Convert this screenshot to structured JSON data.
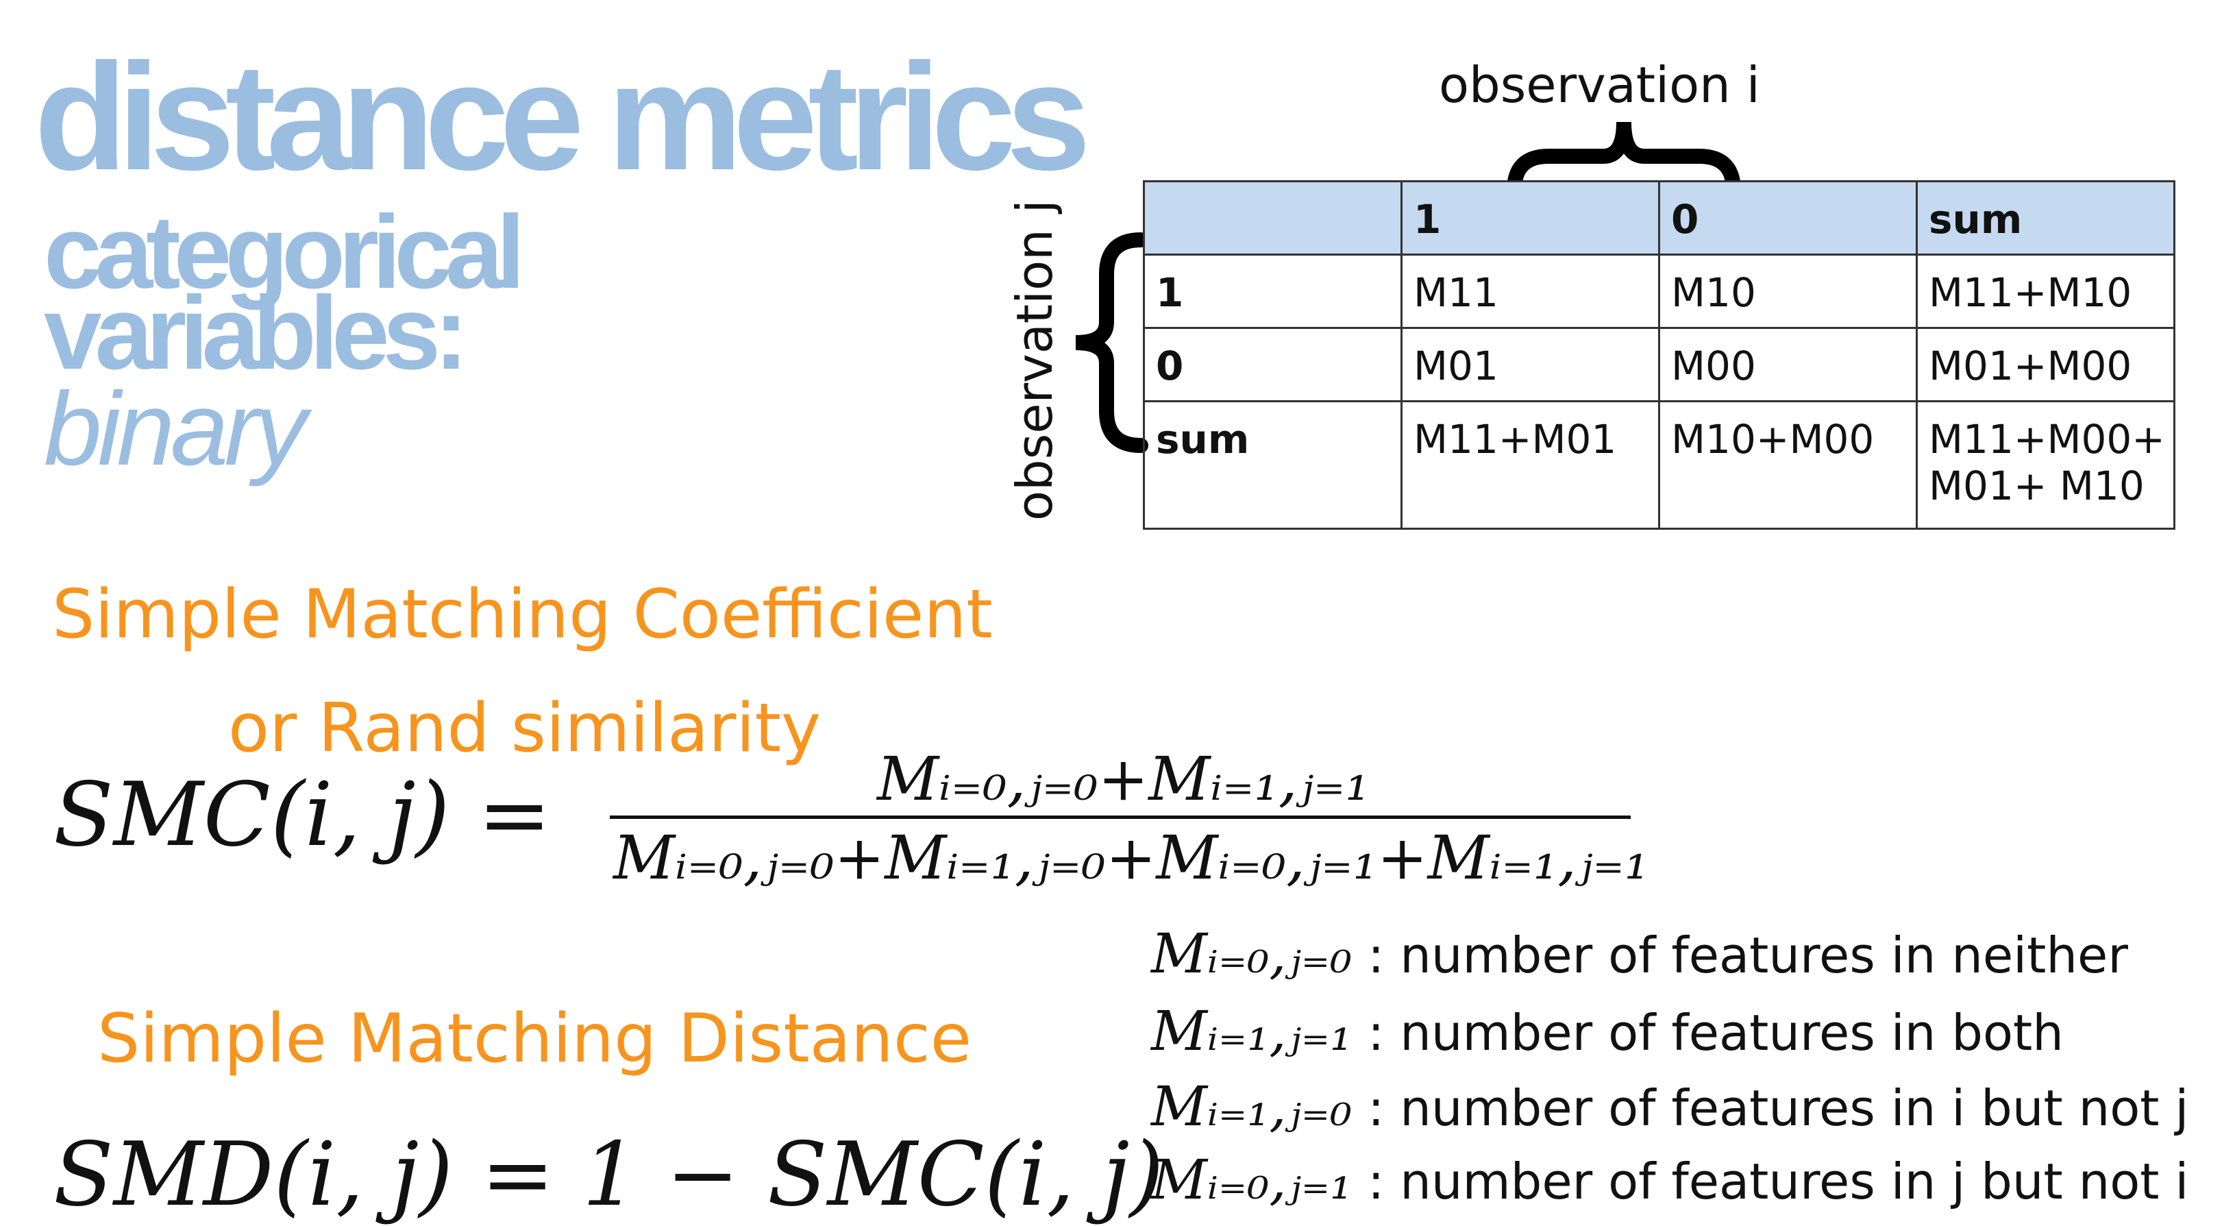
{
  "title": {
    "main": "distance metrics",
    "sub_line1": "categorical",
    "sub_line2": "variables:",
    "sub_line3": "binary"
  },
  "table": {
    "label_columns": "observation i",
    "label_rows": "observation j",
    "header": [
      "",
      "1",
      "0",
      "sum"
    ],
    "rows": [
      [
        "1",
        "M11",
        "M10",
        "M11+M10"
      ],
      [
        "0",
        "M01",
        "M00",
        "M01+M00"
      ],
      [
        "sum",
        "M11+M01",
        "M10+M00",
        "M11+M00+",
        "M01+ M10"
      ]
    ]
  },
  "headings": {
    "smc_line1": "Simple Matching Coefficient",
    "smc_line2": "or Rand similarity",
    "smd": "Simple Matching Distance"
  },
  "formulas": {
    "smc_lhs": "SMC(i, j)  =",
    "smc_num": "Mᵢ₌₀,ⱼ₌₀+Mᵢ₌₁,ⱼ₌₁",
    "smc_den": "Mᵢ₌₀,ⱼ₌₀+Mᵢ₌₁,ⱼ₌₀+Mᵢ₌₀,ⱼ₌₁+Mᵢ₌₁,ⱼ₌₁",
    "smd": "SMD(i, j)  =  1  −  SMC(i, j)"
  },
  "definitions": [
    {
      "symbol": "Mᵢ₌₀,ⱼ₌₀",
      "text": ": number of features in neither"
    },
    {
      "symbol": "Mᵢ₌₁,ⱼ₌₁",
      "text": ": number of features in both"
    },
    {
      "symbol": "Mᵢ₌₁,ⱼ₌₀",
      "text": ": number of features in i but not j"
    },
    {
      "symbol": "Mᵢ₌₀,ⱼ₌₁",
      "text": ": number of features in j but not i"
    }
  ]
}
